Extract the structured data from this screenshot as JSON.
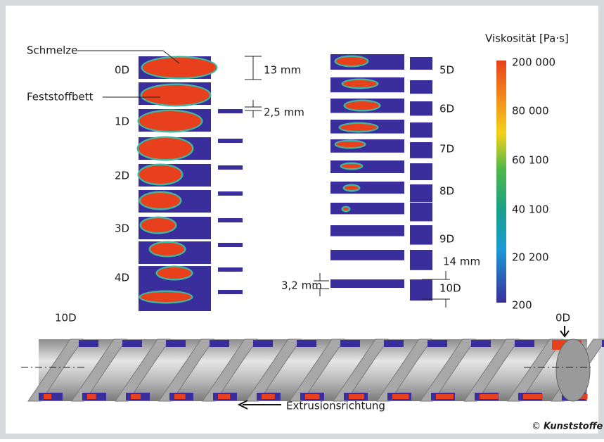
{
  "labels": {
    "melt": "Schmelze",
    "solid_bed": "Feststoffbett"
  },
  "stations_left": [
    "0D",
    "1D",
    "2D",
    "3D",
    "4D"
  ],
  "stations_right": [
    "5D",
    "6D",
    "7D",
    "8D",
    "9D",
    "10D"
  ],
  "dimensions": {
    "height_channel": "13 mm",
    "flight_gap": "2,5 mm",
    "depth_end": "14 mm",
    "gap_end": "3,2 mm"
  },
  "legend": {
    "title": "Viskosität [Pa·s]",
    "labels": [
      "200 000",
      "80 000",
      "60 100",
      "40 100",
      "20 200",
      "200"
    ]
  },
  "screw": {
    "start_label": "10D",
    "end_label": "0D",
    "direction": "Extrusionsrichtung"
  },
  "credit": {
    "symbol": "©",
    "name": "Kunststoffe"
  }
}
